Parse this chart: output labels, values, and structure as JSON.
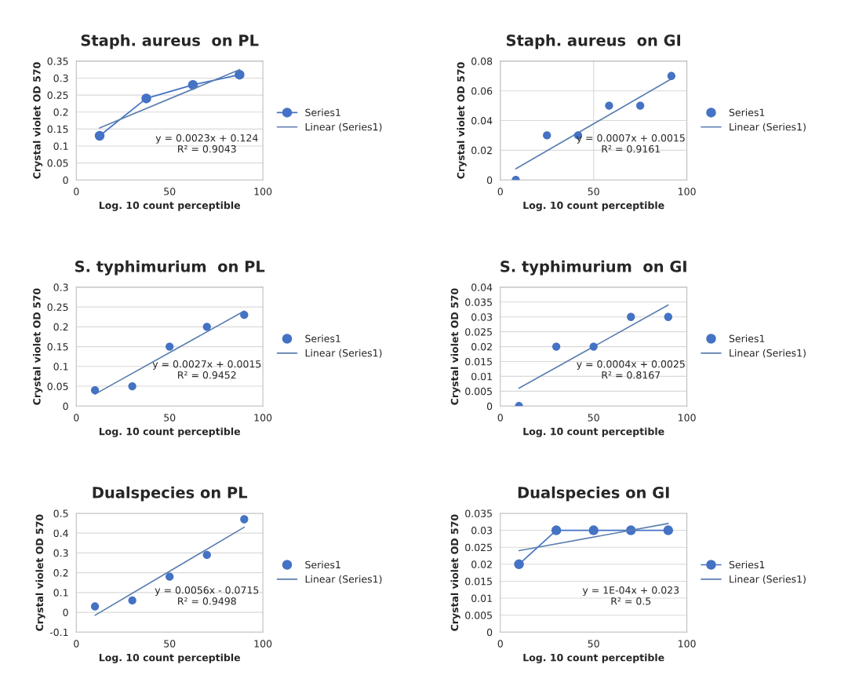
{
  "chart_data": [
    {
      "type": "scatter",
      "title": "Staph. aureus  on PL",
      "xlabel": "Log. 10 count perceptible",
      "ylabel": "Crystal violet OD 570",
      "xlim": [
        0,
        100
      ],
      "xticks": [
        0,
        50,
        100
      ],
      "ylim": [
        0,
        0.35
      ],
      "yticks": [
        0,
        0.05,
        0.1,
        0.15,
        0.2,
        0.25,
        0.3,
        0.35
      ],
      "grid": "y",
      "legend": "right",
      "series": [
        {
          "name": "Series1",
          "type": "line",
          "color": "#4472c4",
          "marker": "circle",
          "line_style": "solid",
          "x": [
            12.5,
            37.5,
            62.5,
            87.5
          ],
          "values": [
            0.13,
            0.24,
            0.28,
            0.31
          ]
        },
        {
          "name": "Linear (Series1)",
          "type": "line",
          "color": "#5b7fb0",
          "marker": "none",
          "line_style": "solid",
          "x": [
            12.5,
            87.5
          ],
          "values": [
            0.153,
            0.325
          ]
        }
      ],
      "annotations": [
        "y = 0.0023x + 0.124\nR² = 0.9043"
      ]
    },
    {
      "type": "scatter",
      "title": "Staph. aureus  on GI",
      "xlabel": "Log. 10 count perceptible",
      "ylabel": "Crystal violet OD 570",
      "xlim": [
        0,
        100
      ],
      "xticks": [
        0,
        50,
        100
      ],
      "ylim": [
        0,
        0.08
      ],
      "yticks": [
        0,
        0.02,
        0.04,
        0.06,
        0.08
      ],
      "grid": true,
      "legend": "right",
      "series": [
        {
          "name": "Series1",
          "color": "#4472c4",
          "marker": "circle",
          "x": [
            8.3,
            25,
            41.7,
            58.3,
            75,
            91.7
          ],
          "values": [
            0,
            0.03,
            0.03,
            0.05,
            0.05,
            0.07
          ]
        },
        {
          "name": "Linear (Series1)",
          "type": "line",
          "color": "#5b7fb0",
          "marker": "none",
          "line_style": "solid",
          "x": [
            8.3,
            91.7
          ],
          "values": [
            0.0075,
            0.068
          ]
        }
      ],
      "annotations": [
        "y = 0.0007x + 0.0015\nR² = 0.9161"
      ]
    },
    {
      "type": "scatter",
      "title": "S. typhimurium  on PL",
      "xlabel": "Log. 10 count perceptible",
      "ylabel": "Crystal violet OD 570",
      "xlim": [
        0,
        100
      ],
      "xticks": [
        0,
        50,
        100
      ],
      "ylim": [
        0,
        0.3
      ],
      "yticks": [
        0,
        0.05,
        0.1,
        0.15,
        0.2,
        0.25,
        0.3
      ],
      "grid": "y",
      "legend": "right",
      "series": [
        {
          "name": "Series1",
          "color": "#4472c4",
          "marker": "circle",
          "x": [
            10,
            30,
            50,
            70,
            90
          ],
          "values": [
            0.04,
            0.05,
            0.15,
            0.2,
            0.23
          ]
        },
        {
          "name": "Linear (Series1)",
          "type": "line",
          "color": "#5b7fb0",
          "marker": "none",
          "line_style": "solid",
          "x": [
            10,
            90
          ],
          "values": [
            0.03,
            0.24
          ]
        }
      ],
      "annotations": [
        "y = 0.0027x + 0.0015\nR² = 0.9452"
      ]
    },
    {
      "type": "scatter",
      "title": "S. typhimurium  on GI",
      "xlabel": "Log. 10 count perceptible",
      "ylabel": "Crystal violet OD 570",
      "xlim": [
        0,
        100
      ],
      "xticks": [
        0,
        50,
        100
      ],
      "ylim": [
        0,
        0.04
      ],
      "yticks": [
        0,
        0.005,
        0.01,
        0.015,
        0.02,
        0.025,
        0.03,
        0.035,
        0.04
      ],
      "grid": "y",
      "legend": "right",
      "series": [
        {
          "name": "Series1",
          "color": "#4472c4",
          "marker": "circle",
          "x": [
            10,
            30,
            50,
            70,
            90
          ],
          "values": [
            0,
            0.02,
            0.02,
            0.03,
            0.03
          ]
        },
        {
          "name": "Linear (Series1)",
          "type": "line",
          "color": "#5b7fb0",
          "marker": "none",
          "line_style": "solid",
          "x": [
            10,
            90
          ],
          "values": [
            0.006,
            0.034
          ]
        }
      ],
      "annotations": [
        "y = 0.0004x + 0.0025\nR² = 0.8167"
      ]
    },
    {
      "type": "scatter",
      "title": "Dualspecies on PL",
      "xlabel": "Log. 10 count perceptible",
      "ylabel": "Crystal violet OD 570",
      "xlim": [
        0,
        100
      ],
      "xticks": [
        0,
        50,
        100
      ],
      "ylim": [
        -0.1,
        0.5
      ],
      "yticks": [
        -0.1,
        0,
        0.1,
        0.2,
        0.3,
        0.4,
        0.5
      ],
      "grid": "y",
      "legend": "right",
      "series": [
        {
          "name": "Series1",
          "color": "#4472c4",
          "marker": "circle",
          "x": [
            10,
            30,
            50,
            70,
            90
          ],
          "values": [
            0.03,
            0.06,
            0.18,
            0.29,
            0.47
          ]
        },
        {
          "name": "Linear (Series1)",
          "type": "line",
          "color": "#5b7fb0",
          "marker": "none",
          "line_style": "solid",
          "x": [
            10,
            90
          ],
          "values": [
            -0.015,
            0.43
          ]
        }
      ],
      "annotations": [
        "y = 0.0056x - 0.0715\nR² = 0.9498"
      ]
    },
    {
      "type": "scatter",
      "title": "Dualspecies on GI",
      "xlabel": "Log. 10 count perceptible",
      "ylabel": "Crystal violet OD 570",
      "xlim": [
        0,
        100
      ],
      "xticks": [
        0,
        50,
        100
      ],
      "ylim": [
        0,
        0.035
      ],
      "yticks": [
        0,
        0.005,
        0.01,
        0.015,
        0.02,
        0.025,
        0.03,
        0.035
      ],
      "grid": "y",
      "legend": "right",
      "series": [
        {
          "name": "Series1",
          "type": "line",
          "color": "#4472c4",
          "marker": "circle",
          "line_style": "solid",
          "x": [
            10,
            30,
            50,
            70,
            90
          ],
          "values": [
            0.02,
            0.03,
            0.03,
            0.03,
            0.03
          ]
        },
        {
          "name": "Linear (Series1)",
          "type": "line",
          "color": "#5b7fb0",
          "marker": "none",
          "line_style": "solid",
          "x": [
            10,
            90
          ],
          "values": [
            0.024,
            0.032
          ]
        }
      ],
      "annotations": [
        "y = 1E-04x + 0.023\nR² = 0.5"
      ]
    }
  ]
}
